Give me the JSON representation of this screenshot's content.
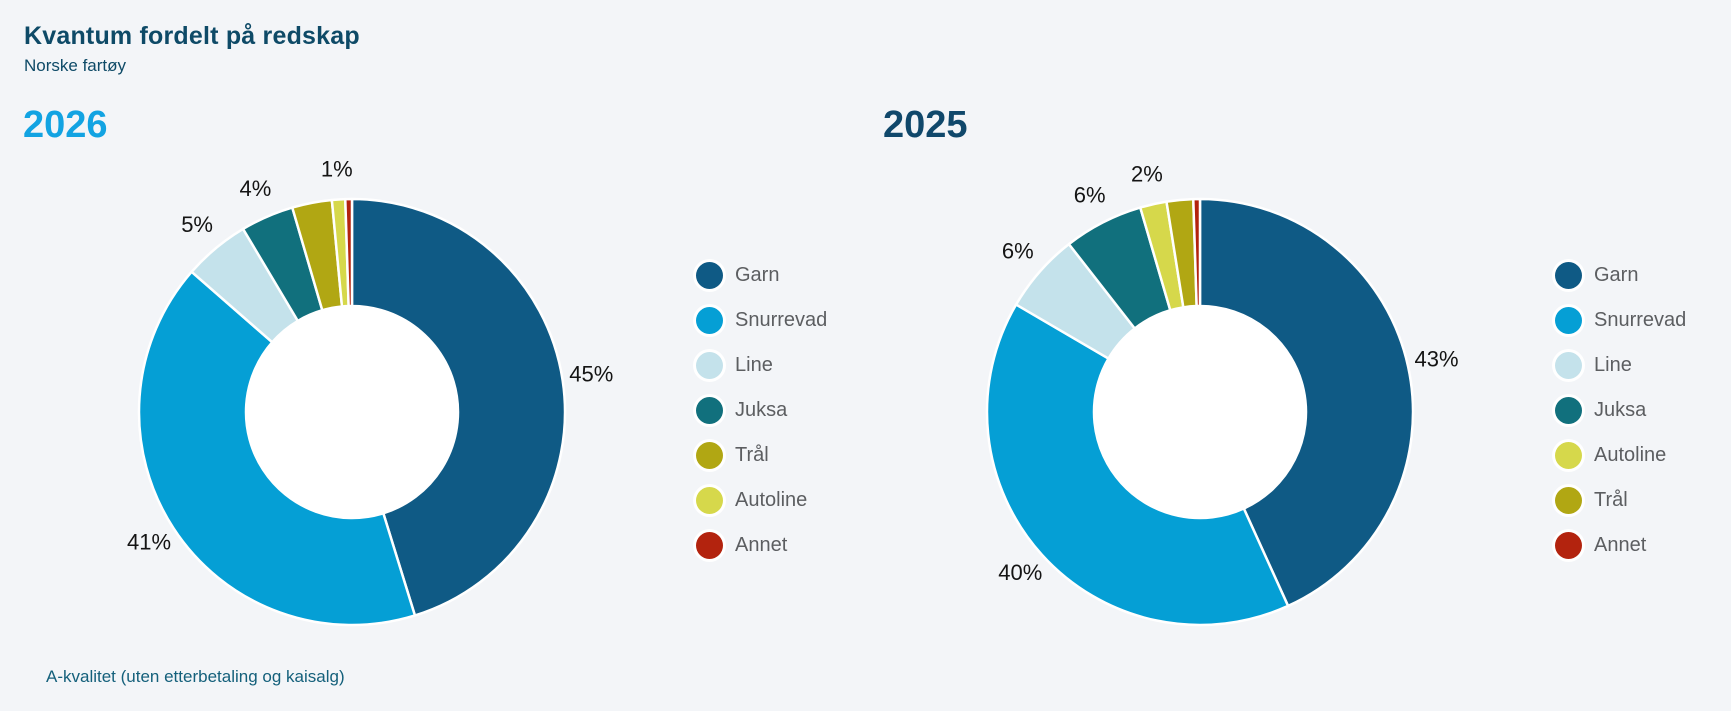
{
  "page": {
    "title": "Kvantum fordelt på redskap",
    "subtitle": "Norske fartøy",
    "footnote": "A-kvalitet (uten etterbetaling og kaisalg)"
  },
  "colors": {
    "background": "#f3f5f8",
    "heading_text": "#0e4a67",
    "year_2026_accent": "#12a3e2",
    "year_2025_accent": "#10486b",
    "legend_text": "#5c5e61",
    "slice_label_text": "#141414",
    "footnote_text": "#14607b",
    "slice_border": "#ffffff",
    "donut_hole": "#ffffff"
  },
  "chart_data": [
    {
      "type": "pie",
      "donut": true,
      "title": "2026",
      "accent": "#12a3e2",
      "unit": "percent",
      "legend_position": "right",
      "slices": [
        {
          "name": "Garn",
          "value": 45,
          "label": "45%",
          "color": "#0f5a85"
        },
        {
          "name": "Snurrevad",
          "value": 41,
          "label": "41%",
          "color": "#059fd5"
        },
        {
          "name": "Line",
          "value": 5,
          "label": "5%",
          "color": "#c4e2eb"
        },
        {
          "name": "Juksa",
          "value": 4,
          "label": "4%",
          "color": "#11707d"
        },
        {
          "name": "Trål",
          "value": 3,
          "label": "",
          "color": "#b1a713"
        },
        {
          "name": "Autoline",
          "value": 1,
          "label": "1%",
          "color": "#d6d84b"
        },
        {
          "name": "Annet",
          "value": 0.5,
          "label": "",
          "color": "#b3230e"
        }
      ]
    },
    {
      "type": "pie",
      "donut": true,
      "title": "2025",
      "accent": "#10486b",
      "unit": "percent",
      "legend_position": "right",
      "slices": [
        {
          "name": "Garn",
          "value": 43,
          "label": "43%",
          "color": "#0f5a85"
        },
        {
          "name": "Snurrevad",
          "value": 40,
          "label": "40%",
          "color": "#059fd5"
        },
        {
          "name": "Line",
          "value": 6,
          "label": "6%",
          "color": "#c4e2eb"
        },
        {
          "name": "Juksa",
          "value": 6,
          "label": "6%",
          "color": "#11707d"
        },
        {
          "name": "Autoline",
          "value": 2,
          "label": "2%",
          "color": "#d6d84b"
        },
        {
          "name": "Trål",
          "value": 2,
          "label": "",
          "color": "#b1a713"
        },
        {
          "name": "Annet",
          "value": 0.5,
          "label": "",
          "color": "#b3230e"
        }
      ]
    }
  ]
}
